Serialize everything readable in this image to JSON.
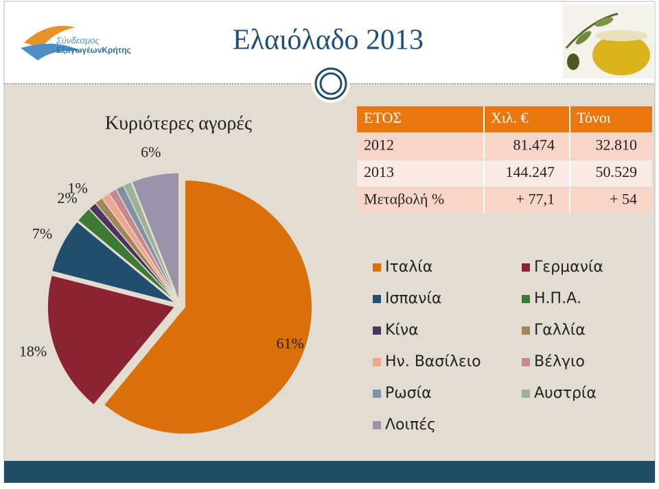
{
  "header": {
    "title": "Ελαιόλαδο 2013",
    "logo_line1": "Σύνδεσμος",
    "logo_line2": "ΕξαγωγέωνΚρήτης"
  },
  "table": {
    "header": [
      "ΕΤΟΣ",
      "Χιλ. €",
      "Τόνοι"
    ],
    "rows": [
      [
        "2012",
        "81.474",
        "32.810"
      ],
      [
        "2013",
        "144.247",
        "50.529"
      ],
      [
        "Μεταβολή %",
        "+ 77,1",
        "+ 54"
      ]
    ]
  },
  "chart_data": {
    "type": "pie",
    "title": "Κυριότερες αγορές",
    "categories": [
      "Ιταλία",
      "Γερμανία",
      "Ισπανία",
      "Η.Π.Α.",
      "Κίνα",
      "Γαλλία",
      "Ην. Βασίλειο",
      "Βέλγιο",
      "Ρωσία",
      "Αυστρία",
      "Λοιπές"
    ],
    "values": [
      61,
      18,
      7,
      2,
      1,
      1,
      1,
      1,
      1,
      1,
      6
    ],
    "value_labels": [
      "61%",
      "18%",
      "7%",
      "2%",
      "1%",
      null,
      null,
      null,
      null,
      null,
      "6%"
    ],
    "colors": [
      "#d9700a",
      "#8b2432",
      "#1f4e6e",
      "#3d7a34",
      "#4b3560",
      "#a0865a",
      "#f0a58e",
      "#c9888f",
      "#8091a6",
      "#9bb393",
      "#9a92a8"
    ],
    "legend": "right"
  }
}
